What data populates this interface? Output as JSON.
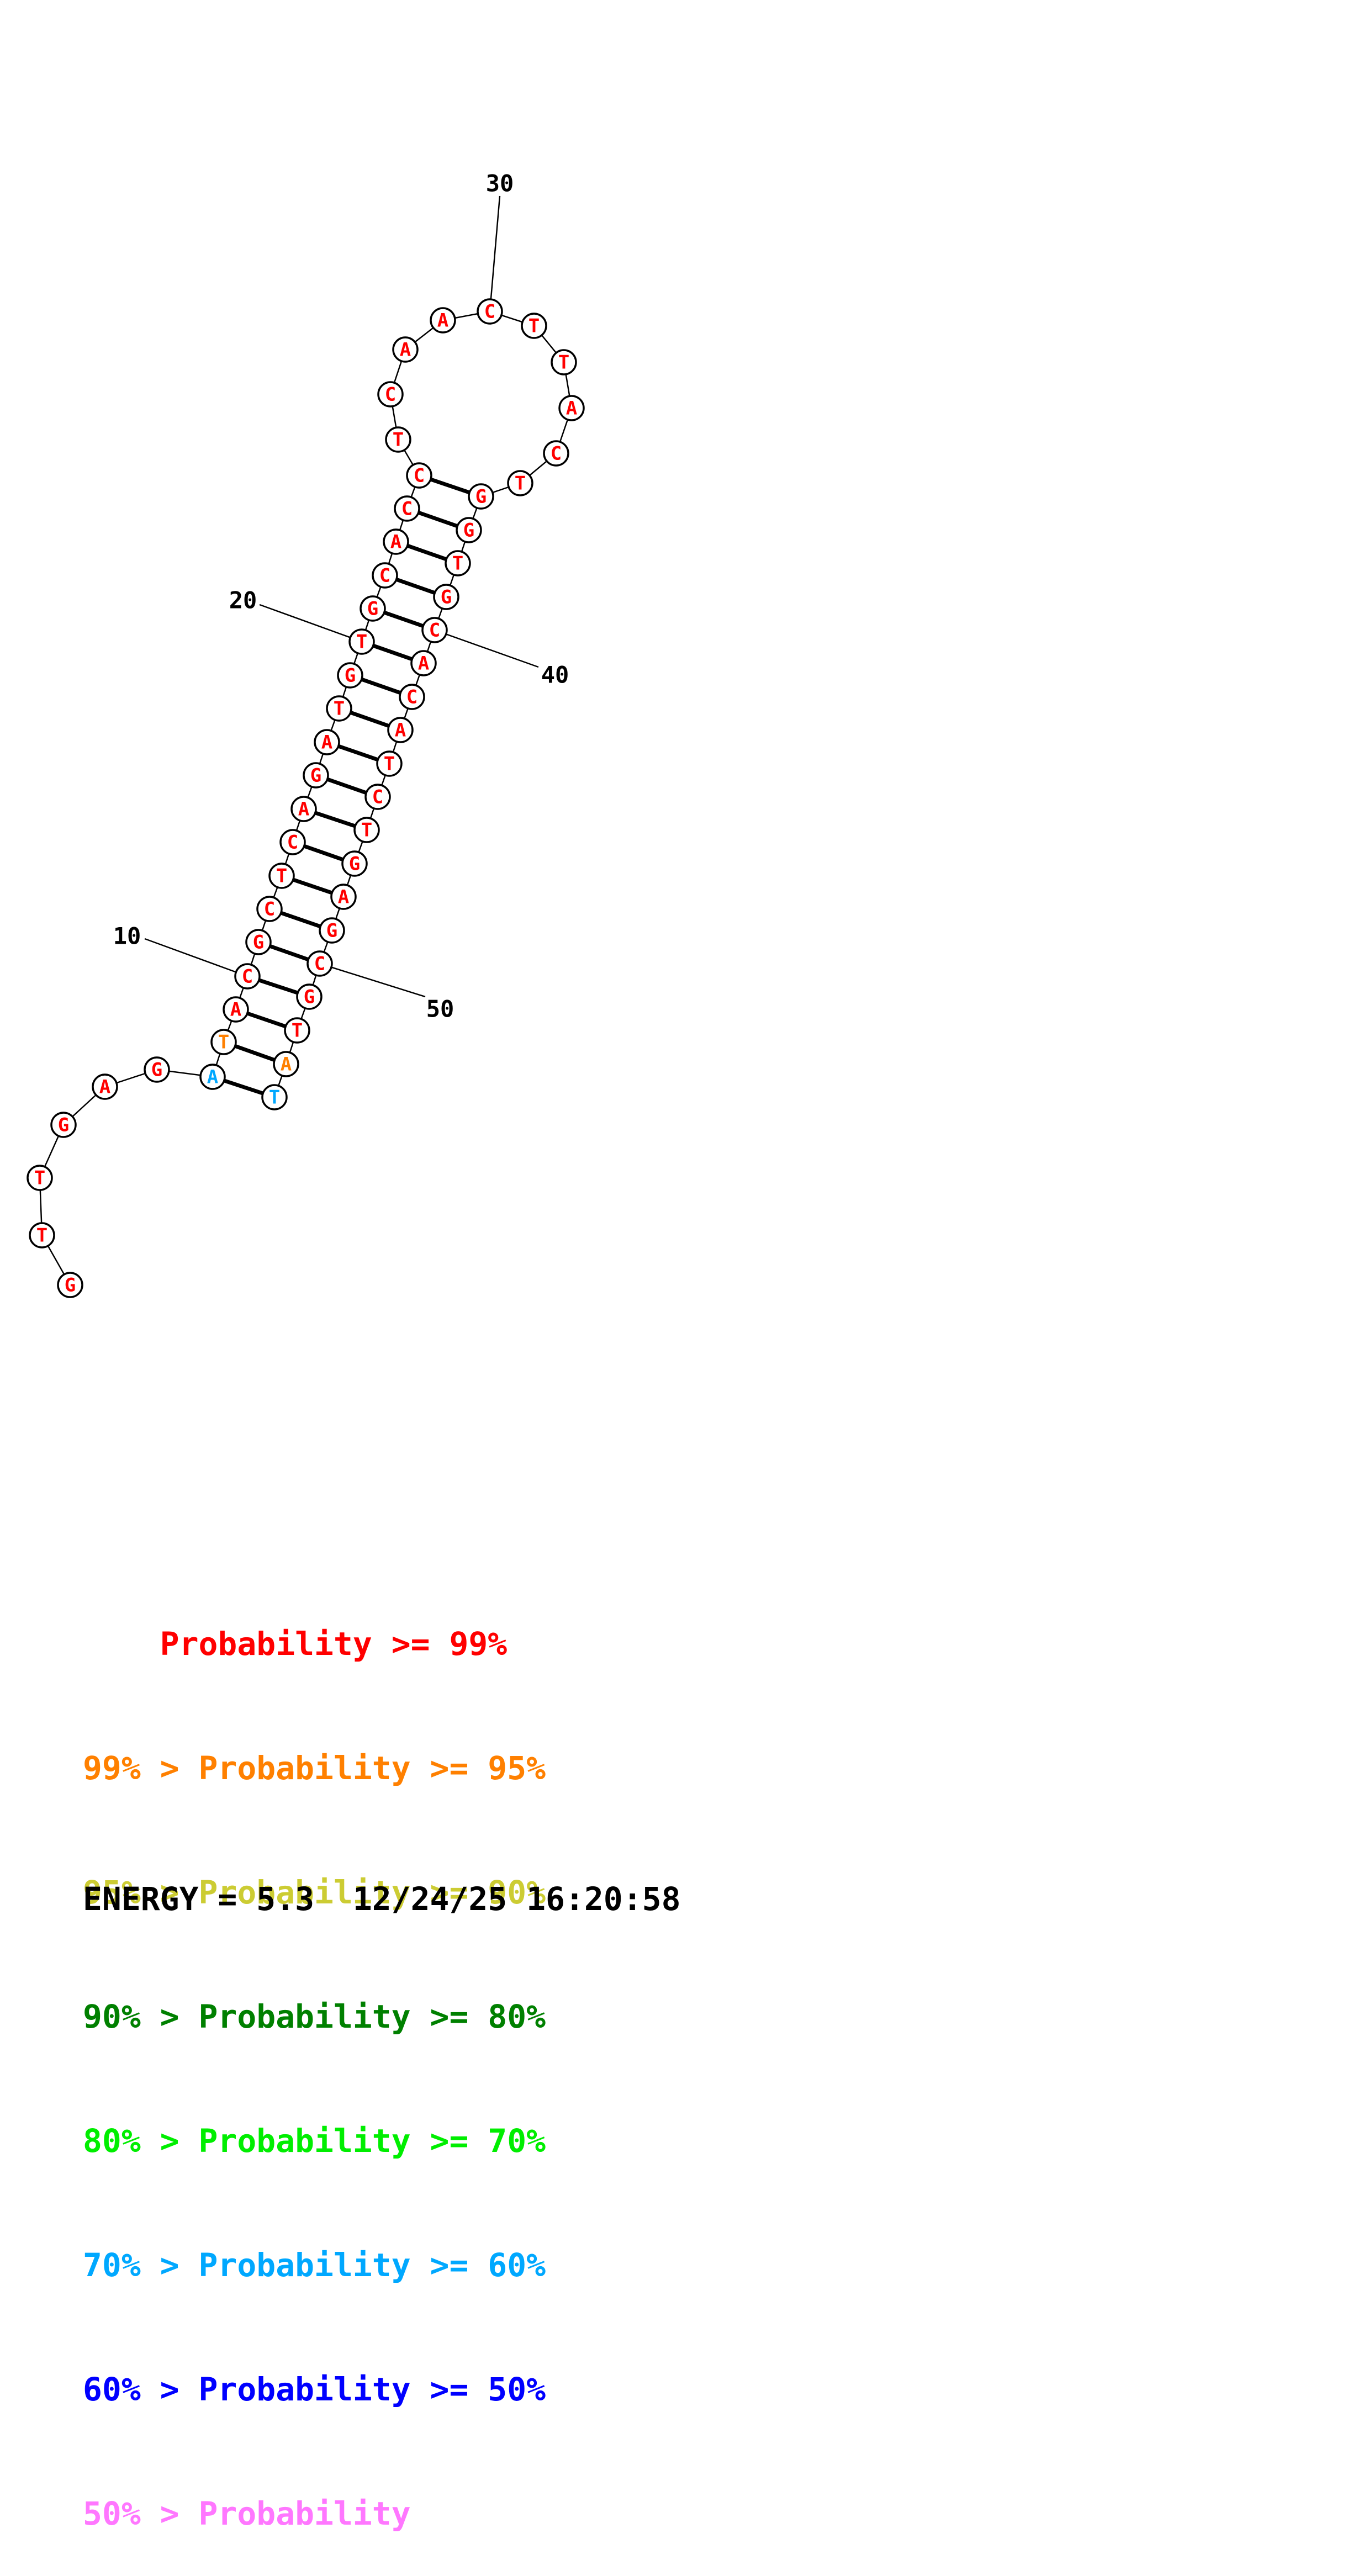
{
  "nucleotides": [
    {
      "n": 1,
      "base": "G",
      "prob": "p99"
    },
    {
      "n": 2,
      "base": "T",
      "prob": "p99"
    },
    {
      "n": 3,
      "base": "T",
      "prob": "p99"
    },
    {
      "n": 4,
      "base": "G",
      "prob": "p99"
    },
    {
      "n": 5,
      "base": "A",
      "prob": "p99"
    },
    {
      "n": 6,
      "base": "G",
      "prob": "p99"
    },
    {
      "n": 7,
      "base": "A",
      "prob": "p60"
    },
    {
      "n": 8,
      "base": "T",
      "prob": "p95"
    },
    {
      "n": 9,
      "base": "A",
      "prob": "p99"
    },
    {
      "n": 10,
      "base": "C",
      "prob": "p99"
    },
    {
      "n": 11,
      "base": "G",
      "prob": "p99"
    },
    {
      "n": 12,
      "base": "C",
      "prob": "p99"
    },
    {
      "n": 13,
      "base": "T",
      "prob": "p99"
    },
    {
      "n": 14,
      "base": "C",
      "prob": "p99"
    },
    {
      "n": 15,
      "base": "A",
      "prob": "p99"
    },
    {
      "n": 16,
      "base": "G",
      "prob": "p99"
    },
    {
      "n": 17,
      "base": "A",
      "prob": "p99"
    },
    {
      "n": 18,
      "base": "T",
      "prob": "p99"
    },
    {
      "n": 19,
      "base": "G",
      "prob": "p99"
    },
    {
      "n": 20,
      "base": "T",
      "prob": "p99"
    },
    {
      "n": 21,
      "base": "G",
      "prob": "p99"
    },
    {
      "n": 22,
      "base": "C",
      "prob": "p99"
    },
    {
      "n": 23,
      "base": "A",
      "prob": "p99"
    },
    {
      "n": 24,
      "base": "C",
      "prob": "p99"
    },
    {
      "n": 25,
      "base": "C",
      "prob": "p99"
    },
    {
      "n": 26,
      "base": "T",
      "prob": "p99"
    },
    {
      "n": 27,
      "base": "C",
      "prob": "p99"
    },
    {
      "n": 28,
      "base": "A",
      "prob": "p99"
    },
    {
      "n": 29,
      "base": "A",
      "prob": "p99"
    },
    {
      "n": 30,
      "base": "C",
      "prob": "p99"
    },
    {
      "n": 31,
      "base": "T",
      "prob": "p99"
    },
    {
      "n": 32,
      "base": "T",
      "prob": "p99"
    },
    {
      "n": 33,
      "base": "A",
      "prob": "p99"
    },
    {
      "n": 34,
      "base": "C",
      "prob": "p99"
    },
    {
      "n": 35,
      "base": "T",
      "prob": "p99"
    },
    {
      "n": 36,
      "base": "G",
      "prob": "p99"
    },
    {
      "n": 37,
      "base": "G",
      "prob": "p99"
    },
    {
      "n": 38,
      "base": "T",
      "prob": "p99"
    },
    {
      "n": 39,
      "base": "G",
      "prob": "p99"
    },
    {
      "n": 40,
      "base": "C",
      "prob": "p99"
    },
    {
      "n": 41,
      "base": "A",
      "prob": "p99"
    },
    {
      "n": 42,
      "base": "C",
      "prob": "p99"
    },
    {
      "n": 43,
      "base": "A",
      "prob": "p99"
    },
    {
      "n": 44,
      "base": "T",
      "prob": "p99"
    },
    {
      "n": 45,
      "base": "C",
      "prob": "p99"
    },
    {
      "n": 46,
      "base": "T",
      "prob": "p99"
    },
    {
      "n": 47,
      "base": "G",
      "prob": "p99"
    },
    {
      "n": 48,
      "base": "A",
      "prob": "p99"
    },
    {
      "n": 49,
      "base": "G",
      "prob": "p99"
    },
    {
      "n": 50,
      "base": "C",
      "prob": "p99"
    },
    {
      "n": 51,
      "base": "G",
      "prob": "p99"
    },
    {
      "n": 52,
      "base": "T",
      "prob": "p99"
    },
    {
      "n": 53,
      "base": "A",
      "prob": "p95"
    },
    {
      "n": 54,
      "base": "T",
      "prob": "p60"
    }
  ],
  "pairs": [
    [
      7,
      54
    ],
    [
      8,
      53
    ],
    [
      9,
      52
    ],
    [
      10,
      51
    ],
    [
      11,
      50
    ],
    [
      12,
      49
    ],
    [
      13,
      48
    ],
    [
      14,
      47
    ],
    [
      15,
      46
    ],
    [
      16,
      45
    ],
    [
      17,
      44
    ],
    [
      18,
      43
    ],
    [
      19,
      42
    ],
    [
      20,
      41
    ],
    [
      21,
      40
    ],
    [
      22,
      39
    ],
    [
      23,
      38
    ],
    [
      24,
      37
    ],
    [
      25,
      36
    ]
  ],
  "position_labels": [
    {
      "n": 10,
      "text": "10"
    },
    {
      "n": 20,
      "text": "20"
    },
    {
      "n": 30,
      "text": "30"
    },
    {
      "n": 40,
      "text": "40"
    },
    {
      "n": 50,
      "text": "50"
    }
  ],
  "probability_colors": {
    "p99": "#ff0000",
    "p95": "#ff8000",
    "p90": "#cccc33",
    "p80": "#008000",
    "p70": "#00ee00",
    "p60": "#00a8ff",
    "p50": "#0000ff",
    "plow": "#ff77ff"
  },
  "legend": [
    {
      "text": "    Probability >= 99%",
      "color": "#ff0000"
    },
    {
      "text": "99% > Probability >= 95%",
      "color": "#ff8000"
    },
    {
      "text": "95% > Probability >= 90%",
      "color": "#cccc33"
    },
    {
      "text": "90% > Probability >= 80%",
      "color": "#008000"
    },
    {
      "text": "80% > Probability >= 70%",
      "color": "#00ee00"
    },
    {
      "text": "70% > Probability >= 60%",
      "color": "#00a8ff"
    },
    {
      "text": "60% > Probability >= 50%",
      "color": "#0000ff"
    },
    {
      "text": "50% > Probability",
      "color": "#ff77ff"
    }
  ],
  "footer": {
    "text": "ENERGY = 5.3  12/24/25 16:20:58"
  }
}
